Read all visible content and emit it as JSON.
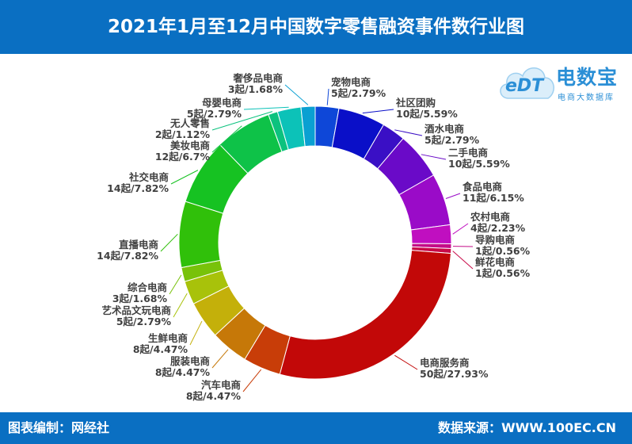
{
  "title": "2021年1月至12月中国数字零售融资事件数行业图",
  "footer": {
    "left": "图表编制：网经社",
    "right": "数据来源：WWW.100EC.CN"
  },
  "logo": {
    "brand": "电数宝",
    "sub": "电商大数据库",
    "mark": "eDT",
    "accent": "#2b8fd6"
  },
  "chart_data": {
    "type": "pie",
    "style": "donut",
    "slices": [
      {
        "label": "宠物电商",
        "count": 5,
        "text": "5起/2.79%",
        "color": "#0e47d8"
      },
      {
        "label": "社区团购",
        "count": 10,
        "text": "10起/5.59%",
        "color": "#0a0fc8"
      },
      {
        "label": "酒水电商",
        "count": 5,
        "text": "5起/2.79%",
        "color": "#3a0fc5"
      },
      {
        "label": "二手电商",
        "count": 10,
        "text": "10起/5.59%",
        "color": "#6a0ac8"
      },
      {
        "label": "食品电商",
        "count": 11,
        "text": "11起/6.15%",
        "color": "#9a0bc8"
      },
      {
        "label": "农村电商",
        "count": 4,
        "text": "4起/2.23%",
        "color": "#c00fc0"
      },
      {
        "label": "导购电商",
        "count": 1,
        "text": "1起/0.56%",
        "color": "#c40c88"
      },
      {
        "label": "鲜花电商",
        "count": 1,
        "text": "1起/0.56%",
        "color": "#c80a48"
      },
      {
        "label": "电商服务商",
        "count": 50,
        "text": "50起/27.93%",
        "color": "#c20808"
      },
      {
        "label": "汽车电商",
        "count": 8,
        "text": "8起/4.47%",
        "color": "#c83d08"
      },
      {
        "label": "服装电商",
        "count": 8,
        "text": "8起/4.47%",
        "color": "#c67808"
      },
      {
        "label": "生鲜电商",
        "count": 8,
        "text": "8起/4.47%",
        "color": "#c4b00a"
      },
      {
        "label": "艺术品文玩电商",
        "count": 5,
        "text": "5起/2.79%",
        "color": "#a8c20a"
      },
      {
        "label": "综合电商",
        "count": 3,
        "text": "3起/1.68%",
        "color": "#78c20a"
      },
      {
        "label": "直播电商",
        "count": 14,
        "text": "14起/7.82%",
        "color": "#30c00a"
      },
      {
        "label": "社交电商",
        "count": 14,
        "text": "14起/7.82%",
        "color": "#16c222"
      },
      {
        "label": "美妆电商",
        "count": 12,
        "text": "12起/6.7%",
        "color": "#0ec248"
      },
      {
        "label": "无人零售",
        "count": 2,
        "text": "2起/1.12%",
        "color": "#0cc27e"
      },
      {
        "label": "母婴电商",
        "count": 5,
        "text": "5起/2.79%",
        "color": "#0cc2b8"
      },
      {
        "label": "奢侈品电商",
        "count": 3,
        "text": "3起/1.68%",
        "color": "#0aa0d2"
      }
    ]
  }
}
